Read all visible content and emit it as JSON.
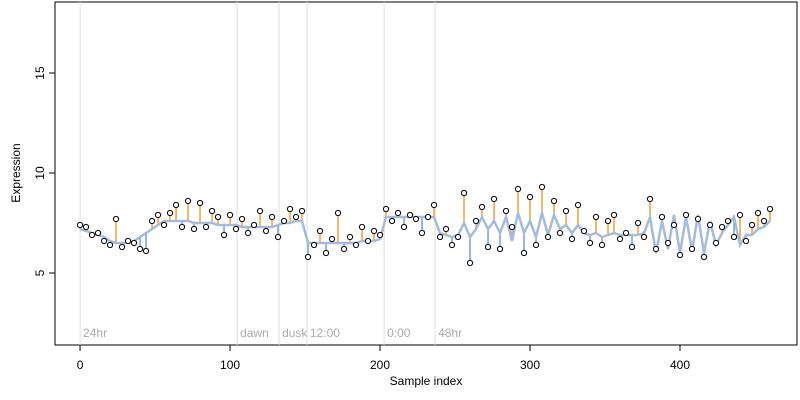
{
  "chart_data": {
    "type": "scatter",
    "xlabel": "Sample index",
    "ylabel": "Expression",
    "xlim": [
      -16.7,
      478
    ],
    "ylim": [
      1.4,
      18.55
    ],
    "xticks": [
      0,
      100,
      200,
      300,
      400
    ],
    "yticks": [
      5,
      10,
      15
    ],
    "colors": {
      "points": "#000000",
      "fit": "#a4bbdb",
      "above": "#f0a030",
      "below": "#6f9fd8",
      "annotation": "#dddddd"
    },
    "annotations": [
      {
        "x": 0,
        "label": "24hr"
      },
      {
        "x": 104.7,
        "label": "dawn"
      },
      {
        "x": 132.7,
        "label": "dusk"
      },
      {
        "x": 151.3,
        "label": "12:00"
      },
      {
        "x": 202.7,
        "label": "0:00"
      },
      {
        "x": 236.7,
        "label": "48hr"
      }
    ],
    "x": [
      0,
      4,
      8,
      12,
      16,
      20,
      24,
      28,
      32,
      36,
      40,
      44,
      48,
      52,
      56,
      60,
      64,
      68,
      72,
      76,
      80,
      84,
      88,
      92,
      96,
      100,
      104,
      108,
      112,
      116,
      120,
      124,
      128,
      132,
      136,
      140,
      144,
      148,
      152,
      156,
      160,
      164,
      168,
      172,
      176,
      180,
      184,
      188,
      192,
      196,
      200,
      204,
      208,
      212,
      216,
      220,
      224,
      228,
      232,
      236,
      240,
      244,
      248,
      252,
      256,
      260,
      264,
      268,
      272,
      276,
      280,
      284,
      288,
      292,
      296,
      300,
      304,
      308,
      312,
      316,
      320,
      324,
      328,
      332,
      336,
      340,
      344,
      348,
      352,
      356,
      360,
      364,
      368,
      372,
      376,
      380,
      384,
      388,
      392,
      396,
      400,
      404,
      408,
      412,
      416,
      420,
      424,
      428,
      432,
      436,
      440,
      444,
      448,
      452,
      456,
      460
    ],
    "values": [
      7.4,
      7.3,
      6.9,
      7.0,
      6.6,
      6.4,
      7.7,
      6.3,
      6.6,
      6.5,
      6.2,
      6.1,
      7.6,
      7.9,
      7.4,
      8.0,
      8.4,
      7.3,
      8.6,
      7.2,
      8.5,
      7.3,
      8.1,
      7.8,
      6.9,
      7.9,
      7.2,
      7.7,
      7.0,
      7.4,
      8.1,
      7.1,
      7.8,
      6.8,
      7.6,
      8.2,
      7.8,
      8.1,
      5.8,
      6.4,
      7.1,
      6.0,
      6.7,
      8.0,
      6.2,
      6.8,
      6.4,
      7.3,
      6.6,
      7.1,
      6.9,
      8.2,
      7.6,
      8.0,
      7.3,
      7.9,
      7.7,
      7.0,
      7.8,
      8.4,
      6.8,
      7.2,
      6.4,
      6.8,
      9.0,
      5.5,
      7.6,
      8.3,
      6.3,
      8.7,
      6.2,
      8.1,
      7.3,
      9.2,
      6.0,
      8.8,
      6.4,
      9.3,
      6.8,
      8.6,
      7.0,
      8.1,
      6.7,
      8.4,
      7.1,
      6.5,
      7.8,
      6.4,
      7.6,
      7.9,
      6.7,
      7.0,
      6.3,
      7.5,
      6.8,
      8.7,
      6.2,
      7.8,
      6.5,
      7.4,
      5.9,
      7.9,
      6.2,
      7.7,
      5.8,
      7.4,
      6.5,
      7.3,
      7.6,
      6.8,
      7.9,
      6.6,
      7.4,
      8.0,
      7.6,
      8.2
    ],
    "fitted": [
      7.2,
      7.1,
      7.0,
      6.9,
      6.8,
      6.6,
      6.5,
      6.5,
      6.5,
      6.6,
      6.8,
      7.0,
      7.2,
      7.4,
      7.6,
      7.6,
      7.6,
      7.6,
      7.6,
      7.5,
      7.5,
      7.5,
      7.5,
      7.4,
      7.4,
      7.4,
      7.4,
      7.3,
      7.3,
      7.3,
      7.3,
      7.3,
      7.3,
      7.4,
      7.5,
      7.5,
      7.6,
      7.6,
      6.5,
      6.5,
      6.5,
      6.5,
      6.5,
      6.5,
      6.5,
      6.5,
      6.5,
      6.6,
      6.6,
      6.6,
      6.7,
      7.8,
      7.8,
      7.8,
      7.8,
      7.8,
      7.8,
      7.8,
      7.8,
      7.8,
      7.0,
      6.9,
      6.8,
      6.9,
      7.5,
      6.8,
      7.2,
      7.8,
      7.2,
      7.6,
      7.0,
      7.8,
      6.6,
      8.0,
      7.0,
      7.6,
      6.8,
      8.0,
      6.9,
      7.9,
      7.2,
      7.4,
      7.0,
      7.4,
      7.0,
      6.9,
      7.0,
      6.8,
      6.9,
      7.0,
      6.9,
      6.9,
      6.9,
      6.9,
      7.0,
      7.8,
      6.0,
      7.6,
      6.2,
      7.9,
      6.0,
      7.8,
      6.1,
      7.9,
      6.0,
      7.6,
      6.4,
      7.0,
      7.4,
      7.8,
      6.4,
      6.9,
      6.9,
      7.2,
      7.3,
      7.6
    ]
  }
}
